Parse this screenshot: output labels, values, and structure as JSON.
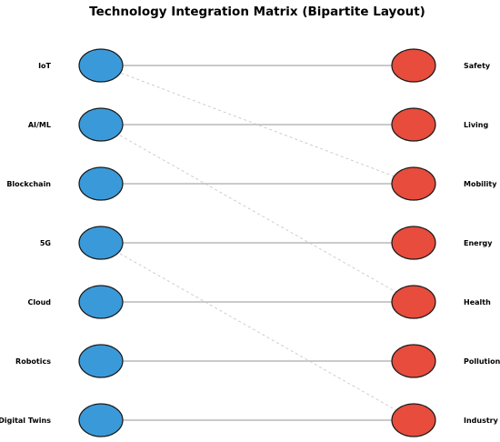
{
  "title": "Technology Integration Matrix (Bipartite Layout)",
  "colors": {
    "left_node_fill": "#3a9ad9",
    "right_node_fill": "#e74c3c",
    "node_stroke": "#1a1a1a",
    "solid_edge": "#b8b8b8",
    "dashed_edge": "#c8c8c8"
  },
  "left_nodes": [
    "IoT",
    "AI/ML",
    "Blockchain",
    "5G",
    "Cloud",
    "Robotics",
    "Digital Twins"
  ],
  "right_nodes": [
    "Safety",
    "Living",
    "Mobility",
    "Energy",
    "Health",
    "Pollution",
    "Industry"
  ],
  "edges": [
    {
      "from": "IoT",
      "to": "Safety",
      "style": "solid"
    },
    {
      "from": "AI/ML",
      "to": "Living",
      "style": "solid"
    },
    {
      "from": "Blockchain",
      "to": "Mobility",
      "style": "solid"
    },
    {
      "from": "5G",
      "to": "Energy",
      "style": "solid"
    },
    {
      "from": "Cloud",
      "to": "Health",
      "style": "solid"
    },
    {
      "from": "Robotics",
      "to": "Pollution",
      "style": "solid"
    },
    {
      "from": "Digital Twins",
      "to": "Industry",
      "style": "solid"
    },
    {
      "from": "IoT",
      "to": "Mobility",
      "style": "dashed"
    },
    {
      "from": "AI/ML",
      "to": "Health",
      "style": "dashed"
    },
    {
      "from": "5G",
      "to": "Industry",
      "style": "dashed"
    }
  ]
}
